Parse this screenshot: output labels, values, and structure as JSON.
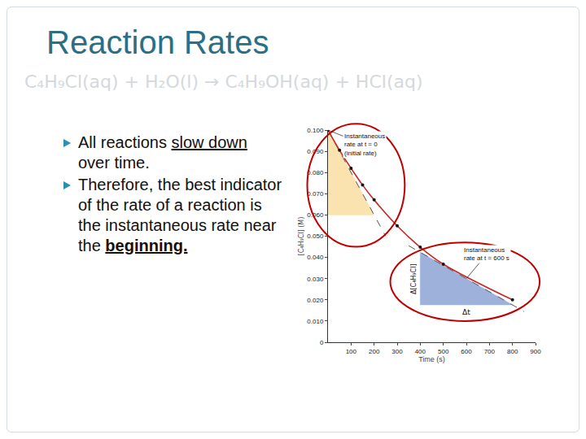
{
  "slide": {
    "title": "Reaction Rates",
    "equation": "C₄H₉Cl(aq) + H₂O(l) → C₄H₉OH(aq) + HCl(aq)",
    "bullets": [
      [
        {
          "text": "All reactions "
        },
        {
          "text": "slow down",
          "style": "underline"
        },
        {
          "text": " over time."
        }
      ],
      [
        {
          "text": "Therefore, the best indicator of the rate of a reaction is the instantaneous rate near the "
        },
        {
          "text": "beginning.",
          "style": "bold underline"
        }
      ]
    ]
  },
  "chart_data": {
    "type": "line",
    "x_label": "Time (s)",
    "y_label": "[C₄H₉Cl] (M)",
    "x": [
      0,
      50,
      100,
      150,
      200,
      300,
      400,
      500,
      800
    ],
    "values": [
      0.1,
      0.0905,
      0.082,
      0.0741,
      0.0671,
      0.0549,
      0.0448,
      0.0368,
      0.02
    ],
    "color": "#c62828",
    "marker": "circle",
    "line_style": "solid",
    "xlim": [
      0,
      900
    ],
    "xticks": [
      100,
      200,
      300,
      400,
      500,
      600,
      700,
      800,
      900
    ],
    "ylim": [
      0,
      0.1
    ],
    "yticks": [
      0,
      {
        "value": 0.01,
        "label": "0.010"
      },
      {
        "value": 0.02,
        "label": "0.020"
      },
      {
        "value": 0.03,
        "label": "0.030"
      },
      {
        "value": 0.04,
        "label": "0.040"
      },
      {
        "value": 0.05,
        "label": "0.050"
      },
      {
        "value": 0.06,
        "label": "0.060"
      },
      {
        "value": 0.07,
        "label": "0.070"
      },
      {
        "value": 0.08,
        "label": "0.080"
      },
      {
        "value": 0.09,
        "label": "0.090"
      },
      {
        "value": 0.1,
        "label": "0.100"
      }
    ],
    "grid": false,
    "tangents": [
      {
        "point": [
          0,
          0.1
        ],
        "x": [
          0,
          250
        ],
        "y": [
          0.1,
          0.05
        ],
        "triangle": {
          "x": [
            0,
            0,
            200
          ],
          "y": [
            0.1,
            0.06,
            0.06
          ]
        },
        "color": "#fbe3b0",
        "label": [
          "Instantaneous",
          "rate at t = 0",
          "(initial rate)"
        ]
      },
      {
        "point": [
          600,
          0.03
        ],
        "x": [
          350,
          850
        ],
        "y": [
          0.0455,
          0.0145
        ],
        "triangle": {
          "x": [
            400,
            400,
            800
          ],
          "y": [
            0.0424,
            0.0176,
            0.0176
          ]
        },
        "color": "#9eb1da",
        "label": [
          "Instantaneous",
          "rate at t = 600 s"
        ],
        "dx_label": "Δt",
        "dy_label": "Δ[C₄H₉Cl]"
      }
    ]
  }
}
